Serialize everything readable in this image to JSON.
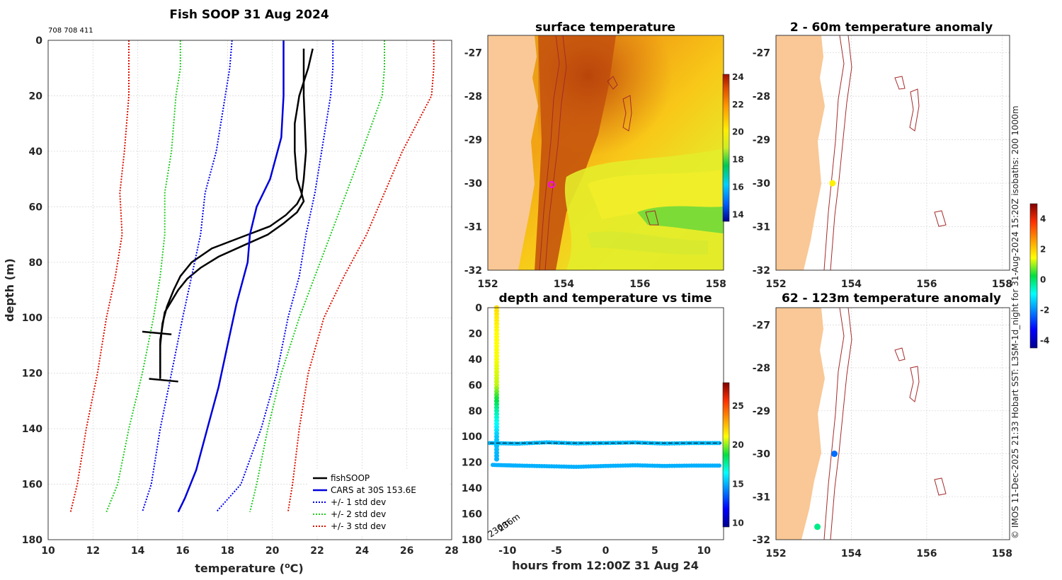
{
  "header": {
    "title": "Fish SOOP 31 Aug 2024",
    "id_text": "708 708 411"
  },
  "side_note": "© IMOS 11-Dec-2025 21:33 Hobart SST: L3SM-1d_night for 31-Aug-2024 15:20Z isobaths: 200  1000m",
  "colors": {
    "fish": "#000000",
    "cars": "#0000dd",
    "std1": "#0000ee",
    "std2": "#22cc22",
    "std3": "#dd1100",
    "land": "#f9c896",
    "isobath": "#a52a2a"
  },
  "chart_data": [
    {
      "id": "profile",
      "type": "line",
      "title": "Fish SOOP 31 Aug 2024",
      "xlabel": "temperature (°C)",
      "ylabel": "depth (m)",
      "xlim": [
        10,
        28
      ],
      "ylim": [
        180,
        0
      ],
      "xticks": [
        "10",
        "12",
        "14",
        "16",
        "18",
        "20",
        "22",
        "24",
        "26",
        "28"
      ],
      "yticks": [
        "0",
        "20",
        "40",
        "60",
        "80",
        "100",
        "120",
        "140",
        "160",
        "180"
      ],
      "legend": [
        "fishSOOP",
        "CARS at 30S 153.6E",
        "+/- 1 std dev",
        "+/- 2 std dev",
        "+/- 3 std dev"
      ],
      "series": [
        {
          "name": "fishSOOP descent",
          "temp": [
            21.8,
            21.6,
            21.2,
            21.0,
            21.0,
            21.1,
            21.3,
            21.4,
            21.1,
            20.5,
            19.8,
            18.7,
            17.6,
            16.8,
            16.2,
            15.8,
            15.5,
            15.2,
            15.1,
            15.0,
            15.0,
            15.0
          ],
          "depth": [
            3,
            10,
            20,
            30,
            40,
            50,
            55,
            58,
            62,
            66,
            70,
            74,
            78,
            82,
            86,
            90,
            94,
            98,
            103,
            108,
            115,
            122
          ]
        },
        {
          "name": "fishSOOP ascent",
          "temp": [
            21.4,
            21.4,
            21.5,
            21.4,
            21.3,
            21.1,
            20.6,
            19.9,
            18.6,
            17.3,
            16.4,
            15.9,
            15.6,
            15.3,
            15.1,
            15.0,
            15.0
          ],
          "depth": [
            3,
            20,
            40,
            50,
            56,
            59,
            63,
            67,
            71,
            75,
            80,
            85,
            90,
            96,
            102,
            110,
            120
          ]
        },
        {
          "name": "CARS mean",
          "temp": [
            20.5,
            20.5,
            20.5,
            20.4,
            19.9,
            19.3,
            19.0,
            18.9,
            18.4,
            18.0,
            17.6,
            17.1,
            16.6,
            16.1,
            15.8
          ],
          "depth": [
            0,
            10,
            20,
            35,
            50,
            60,
            70,
            80,
            95,
            110,
            125,
            140,
            155,
            165,
            170
          ]
        },
        {
          "name": "-1 std",
          "temp": [
            18.2,
            18.1,
            17.9,
            17.5,
            17.0,
            16.8,
            16.4,
            16.0,
            15.5,
            15.0,
            14.6,
            14.2
          ],
          "depth": [
            0,
            10,
            20,
            40,
            55,
            70,
            85,
            100,
            120,
            140,
            160,
            170
          ]
        },
        {
          "name": "+1 std",
          "temp": [
            22.7,
            22.7,
            22.6,
            22.2,
            21.9,
            21.5,
            21.2,
            20.7,
            20.2,
            19.5,
            18.6,
            17.5
          ],
          "depth": [
            0,
            10,
            20,
            40,
            55,
            70,
            85,
            100,
            120,
            140,
            160,
            170
          ]
        },
        {
          "name": "-2 std",
          "temp": [
            15.9,
            15.9,
            15.7,
            15.5,
            15.2,
            15.2,
            15.0,
            14.7,
            14.2,
            13.6,
            13.1,
            12.6
          ],
          "depth": [
            0,
            10,
            20,
            40,
            55,
            70,
            85,
            100,
            120,
            140,
            160,
            170
          ]
        },
        {
          "name": "+2 std",
          "temp": [
            25.0,
            25.0,
            24.9,
            24.0,
            23.3,
            22.6,
            21.9,
            21.2,
            20.4,
            19.8,
            19.3,
            19.0
          ],
          "depth": [
            0,
            10,
            20,
            40,
            55,
            70,
            85,
            100,
            120,
            140,
            160,
            170
          ]
        },
        {
          "name": "-3 std",
          "temp": [
            13.6,
            13.6,
            13.6,
            13.4,
            13.2,
            13.3,
            13.0,
            12.6,
            12.2,
            11.7,
            11.3,
            11.0
          ],
          "depth": [
            0,
            10,
            20,
            40,
            55,
            70,
            85,
            100,
            120,
            140,
            160,
            170
          ]
        },
        {
          "name": "+3 std",
          "temp": [
            27.2,
            27.2,
            27.1,
            25.8,
            25.0,
            24.2,
            23.2,
            22.3,
            21.6,
            21.2,
            20.9,
            20.7
          ],
          "depth": [
            0,
            10,
            20,
            40,
            55,
            70,
            85,
            100,
            120,
            140,
            160,
            170
          ]
        }
      ]
    },
    {
      "id": "sst_map",
      "type": "heatmap",
      "title": "surface temperature",
      "xlim": [
        152,
        158.2
      ],
      "ylim": [
        -32,
        -26.6
      ],
      "xticks": [
        "152",
        "154",
        "156",
        "158"
      ],
      "yticks": [
        "-27",
        "-28",
        "-29",
        "-30",
        "-31",
        "-32"
      ],
      "colorbar": {
        "ticks": [
          "24",
          "22",
          "20",
          "18",
          "16",
          "14"
        ],
        "range": [
          13.5,
          24.2
        ]
      },
      "marker": {
        "lon": 153.6,
        "lat": -30.0
      }
    },
    {
      "id": "depth_time",
      "type": "scatter",
      "title": "depth and temperature vs time",
      "xlabel": "hours from 12:00Z 31 Aug 24",
      "xlim": [
        -12,
        12
      ],
      "ylim": [
        180,
        0
      ],
      "xticks": [
        "-10",
        "-5",
        "0",
        "5",
        "10"
      ],
      "yticks": [
        "0",
        "20",
        "40",
        "60",
        "80",
        "100",
        "120",
        "140",
        "160",
        "180"
      ],
      "colorbar": {
        "ticks": [
          "25",
          "20",
          "15",
          "10"
        ],
        "range": [
          9.5,
          28
        ]
      },
      "bottom_depth_labels": [
        "236m",
        "236m"
      ],
      "series": [
        {
          "name": "descent",
          "hour": [
            -11.1,
            -11.1,
            -11.1,
            -11.1,
            -11.1,
            -11.1,
            -11.1
          ],
          "depth": [
            0,
            20,
            40,
            60,
            80,
            100,
            120
          ],
          "temp": [
            21.8,
            21.1,
            21.0,
            20.5,
            17.5,
            15.5,
            15.0
          ]
        },
        {
          "name": "level 1",
          "hour": [
            -11.8,
            -9,
            -6,
            -3,
            0,
            3,
            6,
            9,
            11.8
          ],
          "depth": [
            105,
            105.5,
            104.5,
            105.3,
            105,
            104.6,
            105.4,
            105,
            105
          ],
          "temp": [
            15.2,
            15.2,
            15.2,
            15.2,
            15.2,
            15.2,
            15.2,
            15.2,
            15.2
          ]
        },
        {
          "name": "level 2",
          "hour": [
            -11.5,
            -9,
            -6,
            -3,
            0,
            3,
            6,
            9,
            11.8
          ],
          "depth": [
            122,
            122.5,
            123,
            123.5,
            122.8,
            122.3,
            122.8,
            122.5,
            122.5
          ],
          "temp": [
            15.0,
            15.0,
            15.0,
            15.0,
            15.0,
            15.0,
            15.0,
            15.0,
            15.0
          ]
        }
      ]
    },
    {
      "id": "anom_shallow",
      "type": "scatter",
      "title": "2 - 60m temperature anomaly",
      "xlim": [
        152,
        158.2
      ],
      "ylim": [
        -32,
        -26.6
      ],
      "xticks": [
        "152",
        "154",
        "156",
        "158"
      ],
      "yticks": [
        "-27",
        "-28",
        "-29",
        "-30",
        "-31",
        "-32"
      ],
      "points": [
        {
          "lon": 153.5,
          "lat": -30.0,
          "anomaly": 1.6
        }
      ]
    },
    {
      "id": "anom_deep",
      "type": "scatter",
      "title": "62 - 123m temperature anomaly",
      "xlim": [
        152,
        158.2
      ],
      "ylim": [
        -32,
        -26.6
      ],
      "xticks": [
        "152",
        "154",
        "156",
        "158"
      ],
      "yticks": [
        "-27",
        "-28",
        "-29",
        "-30",
        "-31",
        "-32"
      ],
      "points": [
        {
          "lon": 153.55,
          "lat": -30.0,
          "anomaly": -2.3
        },
        {
          "lon": 153.1,
          "lat": -31.7,
          "anomaly": -0.2
        }
      ]
    },
    {
      "id": "anom_colorbar",
      "type": "heatmap",
      "ticks": [
        "4",
        "2",
        "0",
        "-2",
        "-4"
      ],
      "range": [
        -4.5,
        5
      ]
    }
  ]
}
